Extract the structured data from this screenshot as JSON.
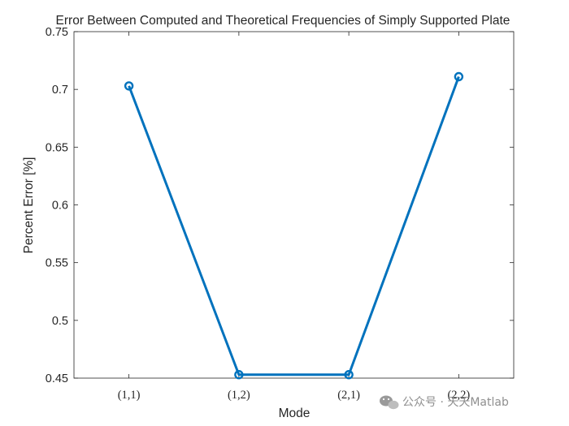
{
  "chart_data": {
    "type": "line",
    "title": "Error Between Computed and Theoretical Frequencies of Simply Supported Plate",
    "xlabel": "Mode",
    "ylabel": "Percent Error [%]",
    "categories": [
      "(1,1)",
      "(1,2)",
      "(2,1)",
      "(2,2)"
    ],
    "values": [
      0.703,
      0.453,
      0.453,
      0.711
    ],
    "ylim": [
      0.45,
      0.75
    ],
    "yticks": [
      "0.45",
      "0.5",
      "0.55",
      "0.6",
      "0.65",
      "0.7",
      "0.75"
    ],
    "marker": "circle",
    "grid": false,
    "color": "#0072BD"
  },
  "watermark": {
    "text": "公众号 · 天天Matlab",
    "icon": "wechat-icon"
  }
}
